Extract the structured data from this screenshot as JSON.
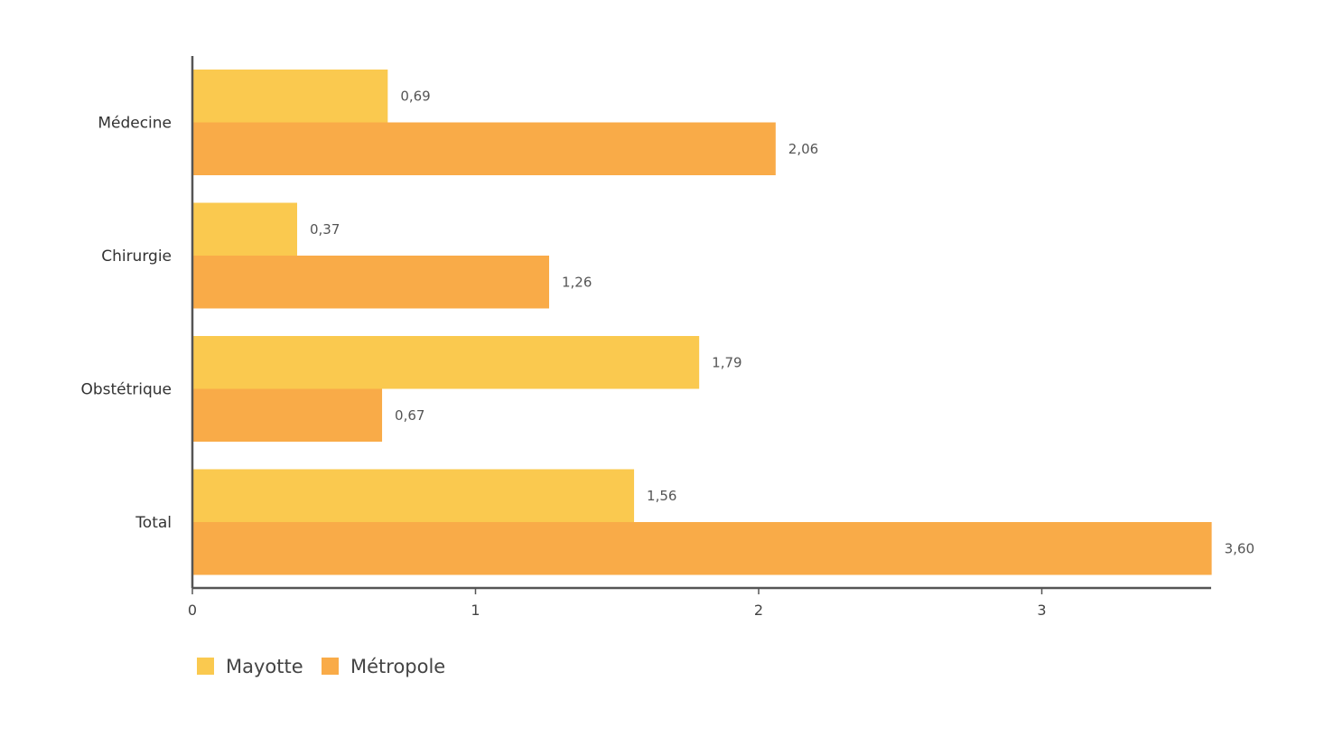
{
  "chart_data": {
    "type": "bar",
    "orientation": "horizontal",
    "categories": [
      "Médecine",
      "Chirurgie",
      "Obstétrique",
      "Total"
    ],
    "series": [
      {
        "name": "Mayotte",
        "color": "#FAC94F",
        "values": [
          0.69,
          0.37,
          1.79,
          1.56
        ],
        "labels": [
          "0,69",
          "0,37",
          "1,79",
          "1,56"
        ]
      },
      {
        "name": "Métropole",
        "color": "#F9AB48",
        "values": [
          2.06,
          1.26,
          0.67,
          3.6
        ],
        "labels": [
          "2,06",
          "1,26",
          "0,67",
          "3,60"
        ]
      }
    ],
    "x_ticks": [
      "0",
      "1",
      "2",
      "3"
    ],
    "xlim": [
      0,
      3.6
    ],
    "title": "",
    "xlabel": "",
    "ylabel": "",
    "grid": false,
    "legend": "bottom-left"
  }
}
